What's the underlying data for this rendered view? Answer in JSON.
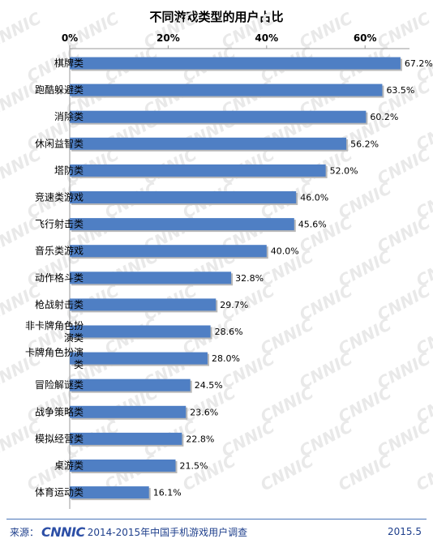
{
  "chart_data": {
    "type": "bar",
    "orientation": "horizontal",
    "title": "不同游戏类型的用户占比",
    "categories": [
      "棋牌类",
      "跑酷躲避类",
      "消除类",
      "休闲益智类",
      "塔防类",
      "竞速类游戏",
      "飞行射击类",
      "音乐类游戏",
      "动作格斗类",
      "枪战射击类",
      "非卡牌角色扮演类",
      "卡牌角色扮演类",
      "冒险解谜类",
      "战争策略类",
      "模拟经营类",
      "桌游类",
      "体育运动类"
    ],
    "values": [
      67.2,
      63.5,
      60.2,
      56.2,
      52.0,
      46.0,
      45.6,
      40.0,
      32.8,
      29.7,
      28.6,
      28.0,
      24.5,
      23.6,
      22.8,
      21.5,
      16.1
    ],
    "value_labels": [
      "67.2%",
      "63.5%",
      "60.2%",
      "56.2%",
      "52.0%",
      "46.0%",
      "45.6%",
      "40.0%",
      "32.8%",
      "29.7%",
      "28.6%",
      "28.0%",
      "24.5%",
      "23.6%",
      "22.8%",
      "21.5%",
      "16.1%"
    ],
    "x_ticks": [
      {
        "value": 0,
        "label": "0%"
      },
      {
        "value": 20,
        "label": "20%"
      },
      {
        "value": 40,
        "label": "40%"
      },
      {
        "value": 60,
        "label": "60%"
      }
    ],
    "xlim": [
      0,
      70
    ],
    "axis_position": "top",
    "grid": false,
    "legend": "none",
    "bar_color": "#4f7fc4",
    "watermark": "CNNIC"
  },
  "footer": {
    "source_prefix": "来源：",
    "logo": "CNNIC",
    "source_text": "2014-2015年中国手机游戏用户调查",
    "date": "2015.5"
  }
}
